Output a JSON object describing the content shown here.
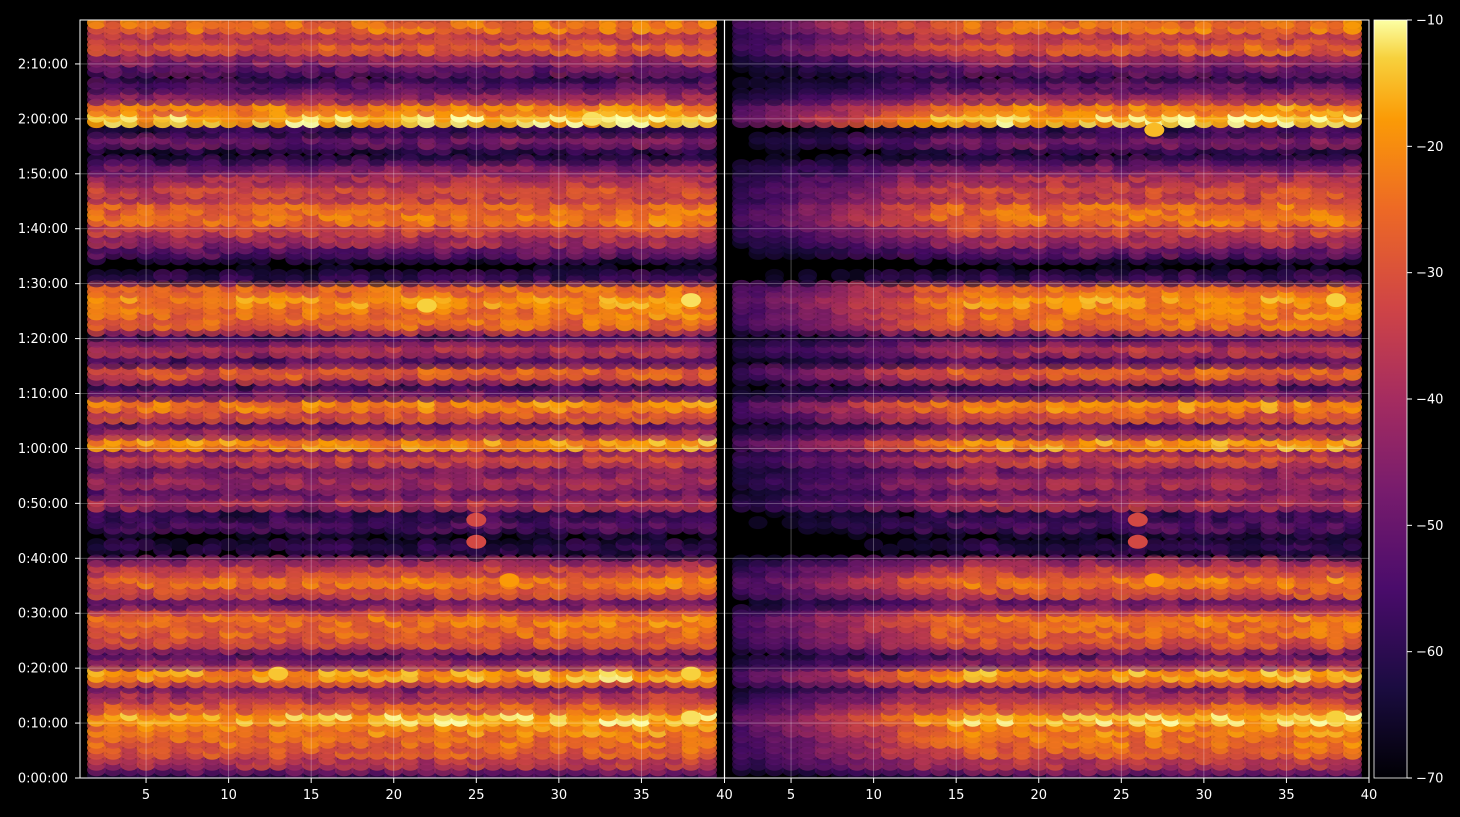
{
  "chart_data": {
    "type": "heatmap",
    "title": "",
    "panels": [
      {
        "name": "",
        "xlim": [
          1,
          40
        ],
        "x_ticks": [
          5,
          10,
          15,
          20,
          25,
          30,
          35
        ],
        "x_tick_labels": [
          "5",
          "10",
          "15",
          "20",
          "25",
          "30",
          "35"
        ]
      },
      {
        "name": "",
        "xlim": [
          1,
          40
        ],
        "x_ticks": [
          5,
          10,
          15,
          20,
          25,
          30,
          35,
          40
        ],
        "x_tick_labels": [
          "5",
          "10",
          "15",
          "20",
          "25",
          "30",
          "35",
          "40"
        ]
      }
    ],
    "shared_x_boundary_label": "40",
    "y_axis": {
      "unit": "seconds",
      "ylim": [
        0,
        8280
      ],
      "ticks": [
        0,
        600,
        1200,
        1800,
        2400,
        3000,
        3600,
        4200,
        4800,
        5400,
        6000,
        6600,
        7200,
        7800
      ],
      "tick_labels": [
        "0:00:00",
        "0:10:00",
        "0:20:00",
        "0:30:00",
        "0:40:00",
        "0:50:00",
        "1:00:00",
        "1:10:00",
        "1:20:00",
        "1:30:00",
        "1:40:00",
        "1:50:00",
        "2:00:00",
        "2:10:00"
      ]
    },
    "colorbar": {
      "colormap": "inferno",
      "range": [
        -70,
        -10
      ],
      "ticks": [
        -10,
        -20,
        -30,
        -40,
        -50,
        -60,
        -70
      ],
      "tick_labels": [
        "−10",
        "−20",
        "−30",
        "−40",
        "−50",
        "−60",
        "−70"
      ]
    },
    "grid": true,
    "bands_seconds_intensity": [
      [
        180,
        -38
      ],
      [
        300,
        -30
      ],
      [
        420,
        -27
      ],
      [
        540,
        -24
      ],
      [
        660,
        -18
      ],
      [
        780,
        -30
      ],
      [
        900,
        -40
      ],
      [
        1140,
        -20
      ],
      [
        1260,
        -46
      ],
      [
        1500,
        -32
      ],
      [
        1620,
        -28
      ],
      [
        1740,
        -26
      ],
      [
        1920,
        -50
      ],
      [
        2040,
        -32
      ],
      [
        2160,
        -26
      ],
      [
        2280,
        -36
      ],
      [
        2520,
        -62
      ],
      [
        2760,
        -56
      ],
      [
        2880,
        -60
      ],
      [
        3000,
        -40
      ],
      [
        3120,
        -50
      ],
      [
        3240,
        -42
      ],
      [
        3360,
        -48
      ],
      [
        3480,
        -36
      ],
      [
        3660,
        -22
      ],
      [
        3780,
        -44
      ],
      [
        3960,
        -32
      ],
      [
        4080,
        -24
      ],
      [
        4200,
        -50
      ],
      [
        4440,
        -30
      ],
      [
        4560,
        -54
      ],
      [
        4680,
        -40
      ],
      [
        4980,
        -28
      ],
      [
        5100,
        -26
      ],
      [
        5220,
        -22
      ],
      [
        5340,
        -28
      ],
      [
        5460,
        -60
      ],
      [
        5760,
        -52
      ],
      [
        5880,
        -42
      ],
      [
        6000,
        -34
      ],
      [
        6120,
        -26
      ],
      [
        6240,
        -28
      ],
      [
        6420,
        -34
      ],
      [
        6540,
        -40
      ],
      [
        6660,
        -48
      ],
      [
        6960,
        -50
      ],
      [
        7080,
        -60
      ],
      [
        7200,
        -16
      ],
      [
        7320,
        -24
      ],
      [
        7440,
        -44
      ],
      [
        7560,
        -54
      ],
      [
        7740,
        -52
      ],
      [
        7860,
        -44
      ],
      [
        7980,
        -30
      ],
      [
        8100,
        -36
      ],
      [
        8220,
        -26
      ]
    ],
    "right_panel_weak_region": {
      "x_from": 1,
      "x_to": 15,
      "attenuation": 0.6
    },
    "hotspots": [
      {
        "panel": 0,
        "x": 32,
        "t": 7200,
        "value": -12
      },
      {
        "panel": 0,
        "x": 22,
        "t": 5160,
        "value": -13
      },
      {
        "panel": 0,
        "x": 13,
        "t": 1140,
        "value": -14
      },
      {
        "panel": 0,
        "x": 38,
        "t": 1140,
        "value": -13
      },
      {
        "panel": 0,
        "x": 38,
        "t": 660,
        "value": -12
      },
      {
        "panel": 0,
        "x": 38,
        "t": 5220,
        "value": -12
      },
      {
        "panel": 0,
        "x": 27,
        "t": 2160,
        "value": -18
      },
      {
        "panel": 0,
        "x": 25,
        "t": 2820,
        "value": -32
      },
      {
        "panel": 0,
        "x": 25,
        "t": 2580,
        "value": -32
      },
      {
        "panel": 1,
        "x": 27,
        "t": 7080,
        "value": -15
      },
      {
        "panel": 1,
        "x": 38,
        "t": 5220,
        "value": -13
      },
      {
        "panel": 1,
        "x": 22,
        "t": 5160,
        "value": -18
      },
      {
        "panel": 1,
        "x": 27,
        "t": 2160,
        "value": -18
      },
      {
        "panel": 1,
        "x": 26,
        "t": 2820,
        "value": -32
      },
      {
        "panel": 1,
        "x": 26,
        "t": 2580,
        "value": -32
      },
      {
        "panel": 1,
        "x": 38,
        "t": 660,
        "value": -13
      }
    ]
  }
}
